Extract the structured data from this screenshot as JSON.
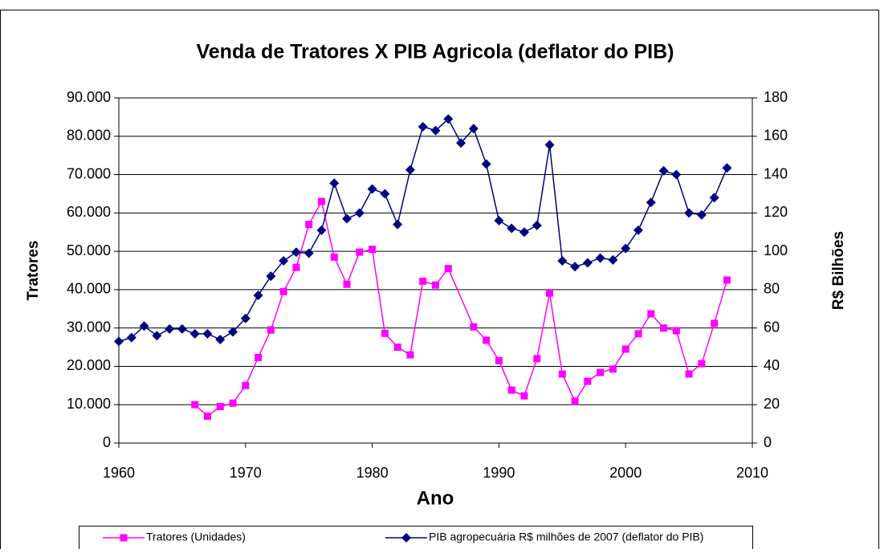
{
  "chart_data": {
    "type": "line",
    "title": "Venda de Tratores X PIB Agricola (deflator do PIB)",
    "xlabel": "Ano",
    "ylabel": "Tratores",
    "y2label": "R$ Bilhões",
    "xlim": [
      1960,
      2010
    ],
    "xticks": [
      1960,
      1970,
      1980,
      1990,
      2000,
      2010
    ],
    "ylim": [
      0,
      90000
    ],
    "yticks": [
      0,
      {
        "value": 10000,
        "label": "10.000"
      },
      {
        "value": 20000,
        "label": "20.000"
      },
      {
        "value": 30000,
        "label": "30.000"
      },
      {
        "value": 40000,
        "label": "40.000"
      },
      {
        "value": 50000,
        "label": "50.000"
      },
      {
        "value": 60000,
        "label": "60.000"
      },
      {
        "value": 70000,
        "label": "70.000"
      },
      {
        "value": 80000,
        "label": "80.000"
      },
      {
        "value": 90000,
        "label": "90.000"
      }
    ],
    "y2lim": [
      0,
      180
    ],
    "y2ticks": [
      0,
      20,
      40,
      60,
      80,
      100,
      120,
      140,
      160,
      180
    ],
    "grid": true,
    "legend": "bottom",
    "series": [
      {
        "name": "Tratores (Unidades)",
        "color": "#ff00ff",
        "marker": "square",
        "x": [
          1966,
          1967,
          1968,
          1969,
          1970,
          1971,
          1972,
          1973,
          1974,
          1975,
          1976,
          1977,
          1978,
          1979,
          1980,
          1981,
          1982,
          1983,
          1984,
          1985,
          1986,
          1988,
          1989,
          1990,
          1991,
          1992,
          1993,
          1994,
          1995,
          1996,
          1997,
          1998,
          1999,
          2000,
          2001,
          2002,
          2003,
          2004,
          2005,
          2006,
          2007,
          2008
        ],
        "values": [
          10000,
          7000,
          9500,
          10400,
          15000,
          22300,
          29500,
          39500,
          45800,
          57000,
          63000,
          48500,
          41400,
          49800,
          50500,
          28600,
          25000,
          23000,
          42200,
          41200,
          45500,
          30300,
          26800,
          21500,
          13800,
          12300,
          22000,
          39100,
          18000,
          10900,
          16100,
          18400,
          19300,
          24500,
          28500,
          33700,
          30000,
          29300,
          18000,
          20700,
          31200,
          42500
        ]
      },
      {
        "name": "PIB agropecuária R$ milhões de 2007 (deflator do PIB)",
        "color": "#000080",
        "marker": "diamond",
        "axis": "y2",
        "x": [
          1960,
          1961,
          1962,
          1963,
          1964,
          1965,
          1966,
          1967,
          1968,
          1969,
          1970,
          1971,
          1972,
          1973,
          1974,
          1975,
          1976,
          1977,
          1978,
          1979,
          1980,
          1981,
          1982,
          1983,
          1984,
          1985,
          1986,
          1987,
          1988,
          1989,
          1990,
          1991,
          1992,
          1993,
          1994,
          1995,
          1996,
          1997,
          1998,
          1999,
          2000,
          2001,
          2002,
          2003,
          2004,
          2005,
          2006,
          2007,
          2008
        ],
        "values": [
          53,
          55,
          61,
          56,
          59.5,
          59.5,
          57,
          57,
          54,
          58,
          65,
          77,
          87,
          95,
          99.5,
          99,
          111,
          135.5,
          117,
          120,
          132.5,
          130,
          114,
          142.5,
          165,
          163,
          169,
          156.5,
          164,
          145.5,
          116,
          112,
          110,
          113.5,
          155.5,
          95,
          92,
          94,
          96.5,
          95.5,
          101.5,
          111,
          125.5,
          142,
          140,
          120,
          119,
          128,
          143.5
        ]
      }
    ]
  }
}
